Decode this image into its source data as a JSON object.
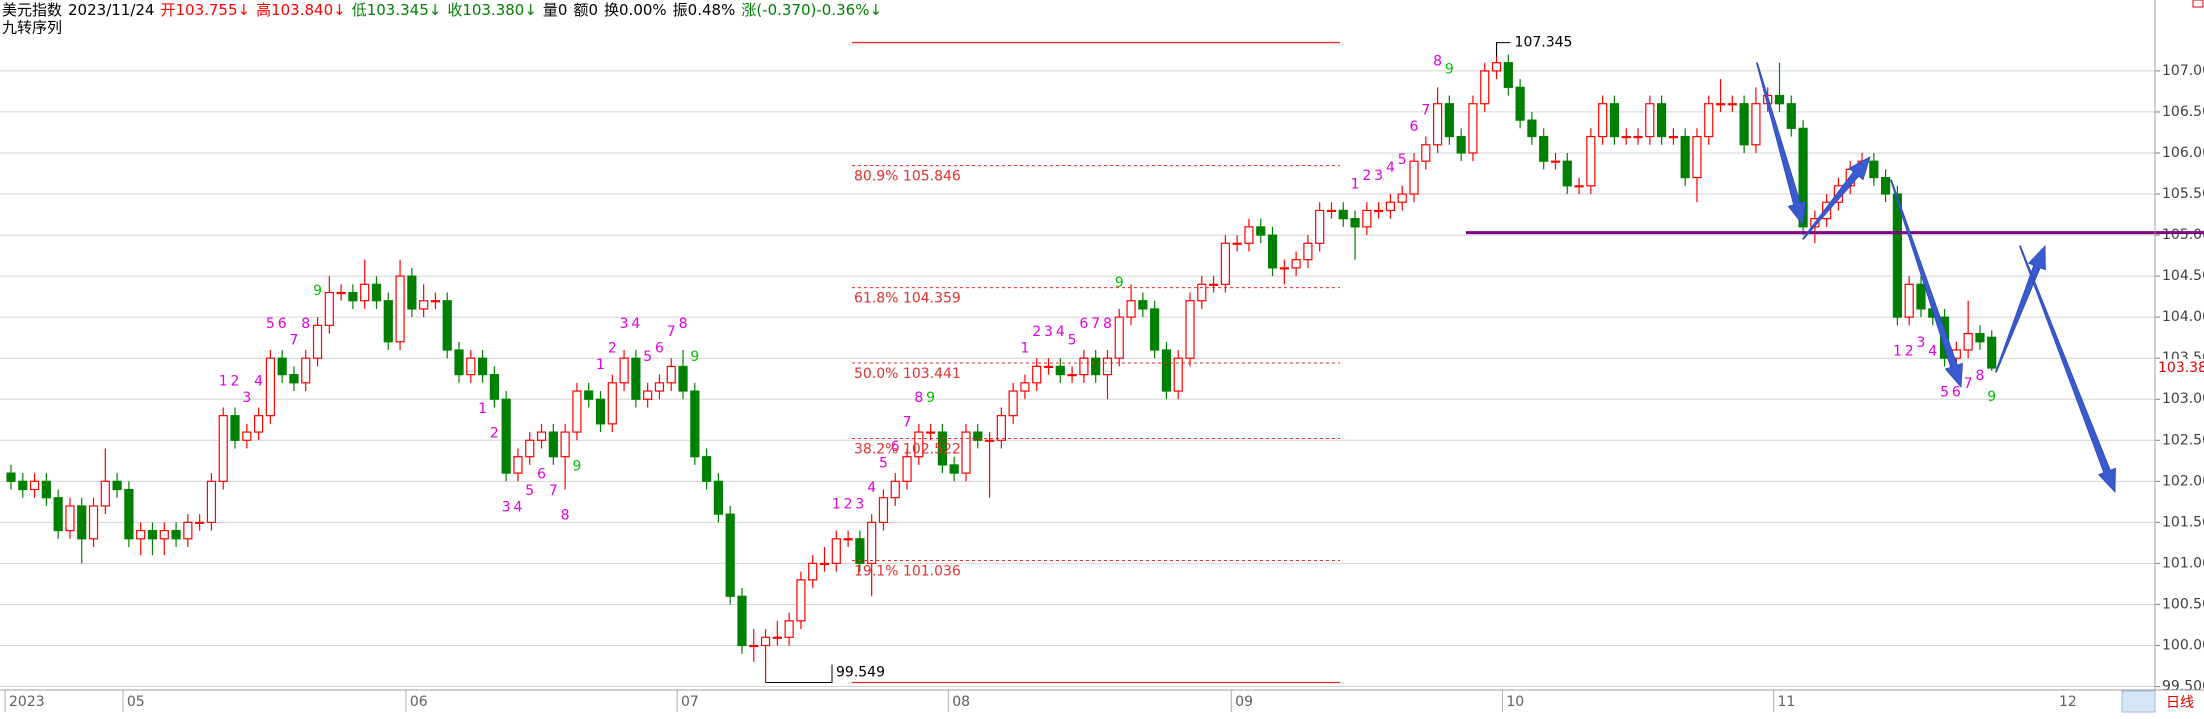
{
  "chart_data": {
    "type": "candlestick",
    "header": [
      {
        "text": "美元指数",
        "color": "#000000"
      },
      {
        "text": "2023/11/24",
        "color": "#000000"
      },
      {
        "text": "开103.755↓",
        "color": "#ff0000"
      },
      {
        "text": "高103.840↓",
        "color": "#ff0000"
      },
      {
        "text": "低103.345↓",
        "color": "#008000"
      },
      {
        "text": "收103.380↓",
        "color": "#008000"
      },
      {
        "text": "量0",
        "color": "#000000"
      },
      {
        "text": "额0",
        "color": "#000000"
      },
      {
        "text": "换0.00%",
        "color": "#000000"
      },
      {
        "text": "振0.48%",
        "color": "#000000"
      },
      {
        "text": "涨(-0.370)-0.36%↓",
        "color": "#008000"
      }
    ],
    "indicator_title": "九转序列",
    "period_label": "日线",
    "future_month_label": "12",
    "up_color": "#ff0000",
    "down_color": "#008000",
    "td_color": "#e000e0",
    "td_complete_color": "#00c000",
    "ylim": [
      99.47,
      107.62
    ],
    "yticks": [
      {
        "value": 99.5,
        "label": "99.500"
      },
      {
        "value": 100,
        "label": "100.00"
      },
      {
        "value": 100.5,
        "label": "100.50"
      },
      {
        "value": 101,
        "label": "101.00"
      },
      {
        "value": 101.5,
        "label": "101.50"
      },
      {
        "value": 102,
        "label": "102.00"
      },
      {
        "value": 102.5,
        "label": "102.50"
      },
      {
        "value": 103,
        "label": "103.00"
      },
      {
        "value": 103.5,
        "label": "103.50"
      },
      {
        "value": 104,
        "label": "104.00"
      },
      {
        "value": 104.5,
        "label": "104.50"
      },
      {
        "value": 105,
        "label": "105.00"
      },
      {
        "value": 105.5,
        "label": "105.50"
      },
      {
        "value": 106,
        "label": "106.00"
      },
      {
        "value": 106.5,
        "label": "106.50"
      },
      {
        "value": 107,
        "label": "107.00"
      }
    ],
    "grid": true,
    "last_value_label": "103.380",
    "hline": {
      "value": 105.03,
      "color": "#800080"
    },
    "fib_color": "#e03030",
    "fib_levels": [
      {
        "value": 105.846,
        "label": "80.9% 105.846"
      },
      {
        "value": 104.359,
        "label": "61.8% 104.359"
      },
      {
        "value": 103.441,
        "label": "50.0% 103.441"
      },
      {
        "value": 102.522,
        "label": "38.2% 102.522"
      },
      {
        "value": 101.036,
        "label": "19.1% 101.036"
      }
    ],
    "categories": [
      "2023",
      null,
      null,
      null,
      null,
      null,
      null,
      null,
      null,
      null,
      "05",
      null,
      null,
      null,
      null,
      null,
      null,
      null,
      null,
      null,
      null,
      null,
      null,
      null,
      null,
      null,
      null,
      null,
      null,
      null,
      null,
      null,
      null,
      null,
      "06",
      null,
      null,
      null,
      null,
      null,
      null,
      null,
      null,
      null,
      null,
      null,
      null,
      null,
      null,
      null,
      null,
      null,
      null,
      null,
      null,
      null,
      null,
      "07",
      null,
      null,
      null,
      null,
      null,
      null,
      null,
      null,
      null,
      null,
      null,
      null,
      null,
      null,
      null,
      null,
      null,
      null,
      null,
      null,
      null,
      null,
      "08",
      null,
      null,
      null,
      null,
      null,
      null,
      null,
      null,
      null,
      null,
      null,
      null,
      null,
      null,
      null,
      null,
      null,
      null,
      null,
      null,
      null,
      null,
      null,
      "09",
      null,
      null,
      null,
      null,
      null,
      null,
      null,
      null,
      null,
      null,
      null,
      null,
      null,
      null,
      null,
      null,
      null,
      null,
      null,
      null,
      null,
      null,
      "10",
      null,
      null,
      null,
      null,
      null,
      null,
      null,
      null,
      null,
      null,
      null,
      null,
      null,
      null,
      null,
      null,
      null,
      null,
      null,
      null,
      null,
      null,
      "11",
      null,
      null,
      null,
      null,
      null,
      null,
      null,
      null,
      null,
      null,
      null,
      null,
      null,
      null,
      null,
      null,
      null,
      null
    ],
    "td": [
      null,
      null,
      null,
      null,
      null,
      null,
      null,
      null,
      null,
      null,
      null,
      null,
      null,
      null,
      null,
      null,
      null,
      null,
      "1",
      "2",
      "3",
      "4",
      "5",
      "6",
      "7",
      "8",
      "9",
      null,
      null,
      null,
      null,
      null,
      null,
      null,
      null,
      null,
      null,
      null,
      null,
      null,
      "1",
      "2",
      "3",
      "4",
      "5",
      "6",
      "7",
      "8",
      "9",
      null,
      "1",
      "2",
      "3",
      "4",
      "5",
      "6",
      "7",
      "8",
      "9",
      null,
      null,
      null,
      null,
      null,
      null,
      null,
      null,
      null,
      null,
      null,
      "1",
      "2",
      "3",
      "4",
      "5",
      "6",
      "7",
      "8",
      "9",
      null,
      null,
      null,
      null,
      null,
      null,
      null,
      "1",
      "2",
      "3",
      "4",
      "5",
      "6",
      "7",
      "8",
      "9",
      null,
      null,
      null,
      null,
      null,
      null,
      null,
      null,
      null,
      null,
      null,
      null,
      null,
      null,
      null,
      null,
      null,
      null,
      null,
      "1",
      "2",
      "3",
      "4",
      "5",
      "6",
      "7",
      "8",
      "9",
      null,
      null,
      null,
      null,
      null,
      null,
      null,
      null,
      null,
      null,
      null,
      null,
      null,
      null,
      null,
      null,
      null,
      null,
      null,
      null,
      null,
      null,
      null,
      null,
      null,
      null,
      null,
      null,
      null,
      null,
      null,
      null,
      null,
      null,
      null,
      null,
      null,
      "1",
      "2",
      "3",
      "4",
      "5",
      "6",
      "7",
      "8",
      "9"
    ],
    "ohlc": [
      [
        102.1,
        102.2,
        101.9,
        102.0
      ],
      [
        102.0,
        102.1,
        101.8,
        101.9
      ],
      [
        101.9,
        102.1,
        101.8,
        102.0
      ],
      [
        102.0,
        102.1,
        101.7,
        101.8
      ],
      [
        101.8,
        101.9,
        101.3,
        101.4
      ],
      [
        101.4,
        101.8,
        101.3,
        101.7
      ],
      [
        101.7,
        101.8,
        101.0,
        101.3
      ],
      [
        101.3,
        101.8,
        101.2,
        101.7
      ],
      [
        101.7,
        102.4,
        101.6,
        102.0
      ],
      [
        102.0,
        102.1,
        101.8,
        101.9
      ],
      [
        101.9,
        102.0,
        101.2,
        101.3
      ],
      [
        101.3,
        101.5,
        101.1,
        101.4
      ],
      [
        101.4,
        101.5,
        101.1,
        101.3
      ],
      [
        101.3,
        101.5,
        101.1,
        101.4
      ],
      [
        101.4,
        101.5,
        101.2,
        101.3
      ],
      [
        101.3,
        101.6,
        101.2,
        101.5
      ],
      [
        101.5,
        101.6,
        101.4,
        101.5
      ],
      [
        101.5,
        102.1,
        101.4,
        102.0
      ],
      [
        102.0,
        102.9,
        101.9,
        102.8
      ],
      [
        102.8,
        102.9,
        102.4,
        102.5
      ],
      [
        102.5,
        102.7,
        102.4,
        102.6
      ],
      [
        102.6,
        102.9,
        102.5,
        102.8
      ],
      [
        102.8,
        103.6,
        102.7,
        103.5
      ],
      [
        103.5,
        103.6,
        103.2,
        103.3
      ],
      [
        103.3,
        103.4,
        103.1,
        103.2
      ],
      [
        103.2,
        103.6,
        103.1,
        103.5
      ],
      [
        103.5,
        104.0,
        103.4,
        103.9
      ],
      [
        103.9,
        104.5,
        103.8,
        104.3
      ],
      [
        104.3,
        104.4,
        104.2,
        104.3
      ],
      [
        104.3,
        104.4,
        104.1,
        104.2
      ],
      [
        104.2,
        104.7,
        104.1,
        104.4
      ],
      [
        104.4,
        104.5,
        104.1,
        104.2
      ],
      [
        104.2,
        104.3,
        103.6,
        103.7
      ],
      [
        103.7,
        104.7,
        103.6,
        104.5
      ],
      [
        104.5,
        104.6,
        104.0,
        104.1
      ],
      [
        104.1,
        104.4,
        104.0,
        104.2
      ],
      [
        104.2,
        104.3,
        104.1,
        104.2
      ],
      [
        104.2,
        104.3,
        103.5,
        103.6
      ],
      [
        103.6,
        103.7,
        103.2,
        103.3
      ],
      [
        103.3,
        103.6,
        103.2,
        103.5
      ],
      [
        103.5,
        103.6,
        103.2,
        103.3
      ],
      [
        103.3,
        103.4,
        102.9,
        103.0
      ],
      [
        103.0,
        103.1,
        102.0,
        102.1
      ],
      [
        102.1,
        102.4,
        102.0,
        102.3
      ],
      [
        102.3,
        102.6,
        102.2,
        102.5
      ],
      [
        102.5,
        102.7,
        102.4,
        102.6
      ],
      [
        102.6,
        102.7,
        102.2,
        102.3
      ],
      [
        102.3,
        102.7,
        101.9,
        102.6
      ],
      [
        102.6,
        103.2,
        102.5,
        103.1
      ],
      [
        103.1,
        103.2,
        102.9,
        103.0
      ],
      [
        103.0,
        103.1,
        102.6,
        102.7
      ],
      [
        102.7,
        103.3,
        102.6,
        103.2
      ],
      [
        103.2,
        103.6,
        103.1,
        103.5
      ],
      [
        103.5,
        103.6,
        102.9,
        103.0
      ],
      [
        103.0,
        103.2,
        102.9,
        103.1
      ],
      [
        103.1,
        103.3,
        103.0,
        103.2
      ],
      [
        103.2,
        103.5,
        103.1,
        103.4
      ],
      [
        103.4,
        103.6,
        103.0,
        103.1
      ],
      [
        103.1,
        103.2,
        102.2,
        102.3
      ],
      [
        102.3,
        102.4,
        101.9,
        102.0
      ],
      [
        102.0,
        102.1,
        101.5,
        101.6
      ],
      [
        101.6,
        101.7,
        100.5,
        100.6
      ],
      [
        100.6,
        100.7,
        99.9,
        100.0
      ],
      [
        100.0,
        100.2,
        99.8,
        100.0
      ],
      [
        100.0,
        100.2,
        99.549,
        100.1
      ],
      [
        100.1,
        100.3,
        100.0,
        100.1
      ],
      [
        100.1,
        100.4,
        100.0,
        100.3
      ],
      [
        100.3,
        100.9,
        100.2,
        100.8
      ],
      [
        100.8,
        101.1,
        100.7,
        101.0
      ],
      [
        101.0,
        101.2,
        100.9,
        101.0
      ],
      [
        101.0,
        101.4,
        100.9,
        101.3
      ],
      [
        101.3,
        101.4,
        101.2,
        101.3
      ],
      [
        101.3,
        101.4,
        100.9,
        101.0
      ],
      [
        101.0,
        101.6,
        100.6,
        101.5
      ],
      [
        101.5,
        101.9,
        101.4,
        101.8
      ],
      [
        101.8,
        102.1,
        101.7,
        102.0
      ],
      [
        102.0,
        102.4,
        101.9,
        102.3
      ],
      [
        102.3,
        102.7,
        102.2,
        102.6
      ],
      [
        102.6,
        102.7,
        102.5,
        102.6
      ],
      [
        102.6,
        102.7,
        102.1,
        102.2
      ],
      [
        102.2,
        102.3,
        102.0,
        102.1
      ],
      [
        102.1,
        102.7,
        102.0,
        102.6
      ],
      [
        102.6,
        102.7,
        102.4,
        102.5
      ],
      [
        102.5,
        102.6,
        101.8,
        102.5
      ],
      [
        102.5,
        102.9,
        102.4,
        102.8
      ],
      [
        102.8,
        103.2,
        102.7,
        103.1
      ],
      [
        103.1,
        103.3,
        103.0,
        103.2
      ],
      [
        103.2,
        103.5,
        103.1,
        103.4
      ],
      [
        103.4,
        103.5,
        103.3,
        103.4
      ],
      [
        103.4,
        103.5,
        103.2,
        103.3
      ],
      [
        103.3,
        103.4,
        103.2,
        103.3
      ],
      [
        103.3,
        103.6,
        103.2,
        103.5
      ],
      [
        103.5,
        103.6,
        103.2,
        103.3
      ],
      [
        103.3,
        103.6,
        103.0,
        103.5
      ],
      [
        103.5,
        104.1,
        103.4,
        104.0
      ],
      [
        104.0,
        104.4,
        103.9,
        104.2
      ],
      [
        104.2,
        104.3,
        104.0,
        104.1
      ],
      [
        104.1,
        104.2,
        103.5,
        103.6
      ],
      [
        103.6,
        103.7,
        103.0,
        103.1
      ],
      [
        103.1,
        103.6,
        103.0,
        103.5
      ],
      [
        103.5,
        104.3,
        103.4,
        104.2
      ],
      [
        104.2,
        104.5,
        104.1,
        104.4
      ],
      [
        104.4,
        104.5,
        104.3,
        104.4
      ],
      [
        104.4,
        105.0,
        104.3,
        104.9
      ],
      [
        104.9,
        105.0,
        104.8,
        104.9
      ],
      [
        104.9,
        105.2,
        104.8,
        105.1
      ],
      [
        105.1,
        105.2,
        104.9,
        105.0
      ],
      [
        105.0,
        105.1,
        104.5,
        104.6
      ],
      [
        104.6,
        104.7,
        104.4,
        104.6
      ],
      [
        104.6,
        104.8,
        104.5,
        104.7
      ],
      [
        104.7,
        105.0,
        104.6,
        104.9
      ],
      [
        104.9,
        105.4,
        104.8,
        105.3
      ],
      [
        105.3,
        105.4,
        105.2,
        105.3
      ],
      [
        105.3,
        105.4,
        105.1,
        105.2
      ],
      [
        105.2,
        105.3,
        104.7,
        105.1
      ],
      [
        105.1,
        105.4,
        105.0,
        105.3
      ],
      [
        105.3,
        105.4,
        105.2,
        105.3
      ],
      [
        105.3,
        105.5,
        105.2,
        105.4
      ],
      [
        105.4,
        105.6,
        105.3,
        105.5
      ],
      [
        105.5,
        106.0,
        105.4,
        105.9
      ],
      [
        105.9,
        106.2,
        105.8,
        106.1
      ],
      [
        106.1,
        106.8,
        106.0,
        106.6
      ],
      [
        106.6,
        106.7,
        106.1,
        106.2
      ],
      [
        106.2,
        106.3,
        105.9,
        106.0
      ],
      [
        106.0,
        106.7,
        105.9,
        106.6
      ],
      [
        106.6,
        107.1,
        106.5,
        107.0
      ],
      [
        107.0,
        107.345,
        106.9,
        107.1
      ],
      [
        107.1,
        107.2,
        106.7,
        106.8
      ],
      [
        106.8,
        106.9,
        106.3,
        106.4
      ],
      [
        106.4,
        106.5,
        106.1,
        106.2
      ],
      [
        106.2,
        106.3,
        105.8,
        105.9
      ],
      [
        105.9,
        106.0,
        105.8,
        105.9
      ],
      [
        105.9,
        106.0,
        105.5,
        105.6
      ],
      [
        105.6,
        105.7,
        105.5,
        105.6
      ],
      [
        105.6,
        106.3,
        105.5,
        106.2
      ],
      [
        106.2,
        106.7,
        106.1,
        106.6
      ],
      [
        106.6,
        106.7,
        106.1,
        106.2
      ],
      [
        106.2,
        106.3,
        106.1,
        106.2
      ],
      [
        106.2,
        106.3,
        106.1,
        106.2
      ],
      [
        106.2,
        106.7,
        106.1,
        106.6
      ],
      [
        106.6,
        106.7,
        106.1,
        106.2
      ],
      [
        106.2,
        106.3,
        106.1,
        106.2
      ],
      [
        106.2,
        106.3,
        105.6,
        105.7
      ],
      [
        105.7,
        106.3,
        105.4,
        106.2
      ],
      [
        106.2,
        106.7,
        106.1,
        106.6
      ],
      [
        106.6,
        106.9,
        106.5,
        106.6
      ],
      [
        106.6,
        106.7,
        106.5,
        106.6
      ],
      [
        106.6,
        106.7,
        106.0,
        106.1
      ],
      [
        106.1,
        106.8,
        106.0,
        106.6
      ],
      [
        106.6,
        106.8,
        106.5,
        106.7
      ],
      [
        106.7,
        107.1,
        106.5,
        106.6
      ],
      [
        106.6,
        106.7,
        106.2,
        106.3
      ],
      [
        106.3,
        106.4,
        105.0,
        105.1
      ],
      [
        105.1,
        105.3,
        104.9,
        105.2
      ],
      [
        105.2,
        105.5,
        105.1,
        105.4
      ],
      [
        105.4,
        105.7,
        105.3,
        105.6
      ],
      [
        105.6,
        105.9,
        105.5,
        105.8
      ],
      [
        105.8,
        106.0,
        105.7,
        105.9
      ],
      [
        105.9,
        106.0,
        105.6,
        105.7
      ],
      [
        105.7,
        105.8,
        105.4,
        105.5
      ],
      [
        105.5,
        105.6,
        103.9,
        104.0
      ],
      [
        104.0,
        104.5,
        103.9,
        104.4
      ],
      [
        104.4,
        104.5,
        104.0,
        104.1
      ],
      [
        104.1,
        104.2,
        103.9,
        104.0
      ],
      [
        104.0,
        104.1,
        103.4,
        103.5
      ],
      [
        103.5,
        103.7,
        103.4,
        103.6
      ],
      [
        103.6,
        104.2,
        103.5,
        103.8
      ],
      [
        103.8,
        103.9,
        103.6,
        103.7
      ],
      [
        103.755,
        103.84,
        103.345,
        103.38
      ]
    ]
  }
}
